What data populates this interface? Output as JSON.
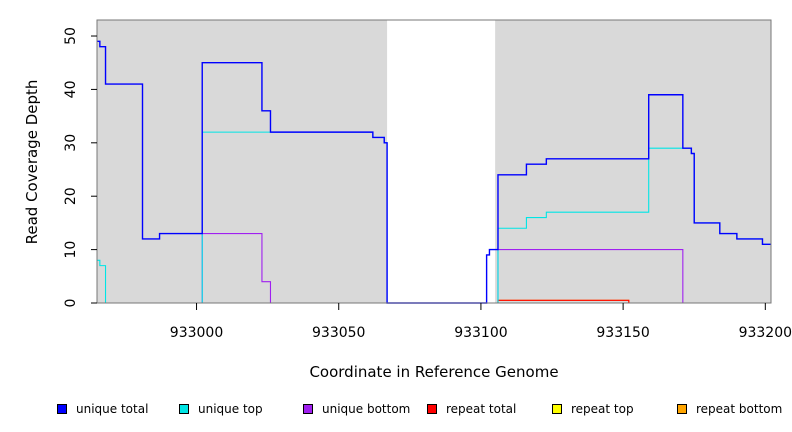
{
  "chart_data": {
    "type": "line",
    "title": "",
    "xlabel": "Coordinate in Reference Genome",
    "ylabel": "Read Coverage Depth",
    "xlim": [
      932965,
      933202
    ],
    "ylim": [
      0,
      53
    ],
    "xticks": [
      933000,
      933050,
      933100,
      933150,
      933200
    ],
    "yticks": [
      0,
      10,
      20,
      30,
      40,
      50
    ],
    "shaded_regions": [
      [
        932965,
        933067
      ],
      [
        933105,
        933202
      ]
    ],
    "legend_position": "bottom",
    "series": [
      {
        "name": "unique total",
        "color": "#0000ff",
        "step_points": [
          [
            932965,
            49
          ],
          [
            932966,
            48
          ],
          [
            932968,
            41
          ],
          [
            932981,
            12
          ],
          [
            932987,
            13
          ],
          [
            933002,
            45
          ],
          [
            933023,
            36
          ],
          [
            933026,
            32
          ],
          [
            933062,
            31
          ],
          [
            933066,
            30
          ],
          [
            933067,
            0
          ],
          [
            933102,
            9
          ],
          [
            933103,
            10
          ],
          [
            933106,
            24
          ],
          [
            933116,
            26
          ],
          [
            933123,
            27
          ],
          [
            933159,
            39
          ],
          [
            933171,
            29
          ],
          [
            933174,
            28
          ],
          [
            933175,
            15
          ],
          [
            933184,
            13
          ],
          [
            933190,
            12
          ],
          [
            933199,
            11
          ],
          [
            933202,
            11
          ]
        ]
      },
      {
        "name": "unique top",
        "color": "#00e5e5",
        "step_points": [
          [
            932965,
            8
          ],
          [
            932966,
            7
          ],
          [
            932968,
            0
          ],
          [
            933002,
            32
          ],
          [
            933026,
            32
          ],
          [
            933062,
            31
          ],
          [
            933066,
            30
          ],
          [
            933067,
            0
          ],
          [
            933106,
            14
          ],
          [
            933116,
            16
          ],
          [
            933123,
            17
          ],
          [
            933159,
            29
          ],
          [
            933171,
            29
          ],
          [
            933174,
            28
          ],
          [
            933175,
            15
          ],
          [
            933184,
            13
          ],
          [
            933190,
            12
          ],
          [
            933199,
            11
          ],
          [
            933202,
            11
          ]
        ]
      },
      {
        "name": "unique bottom",
        "color": "#a020f0",
        "step_points": [
          [
            932965,
            0
          ],
          [
            933002,
            13
          ],
          [
            933023,
            4
          ],
          [
            933026,
            0
          ],
          [
            933106,
            10
          ],
          [
            933171,
            0
          ],
          [
            933202,
            0
          ]
        ]
      },
      {
        "name": "repeat total",
        "color": "#ff0000",
        "step_points": [
          [
            932965,
            0
          ],
          [
            933106,
            0.5
          ],
          [
            933152,
            0
          ],
          [
            933202,
            0
          ]
        ]
      },
      {
        "name": "repeat top",
        "color": "#ffff00",
        "step_points": [
          [
            932965,
            0
          ],
          [
            933202,
            0
          ]
        ]
      },
      {
        "name": "repeat bottom",
        "color": "#ffa500",
        "step_points": [
          [
            932965,
            0
          ],
          [
            933106,
            0.5
          ],
          [
            933152,
            0
          ],
          [
            933202,
            0
          ]
        ]
      }
    ]
  }
}
